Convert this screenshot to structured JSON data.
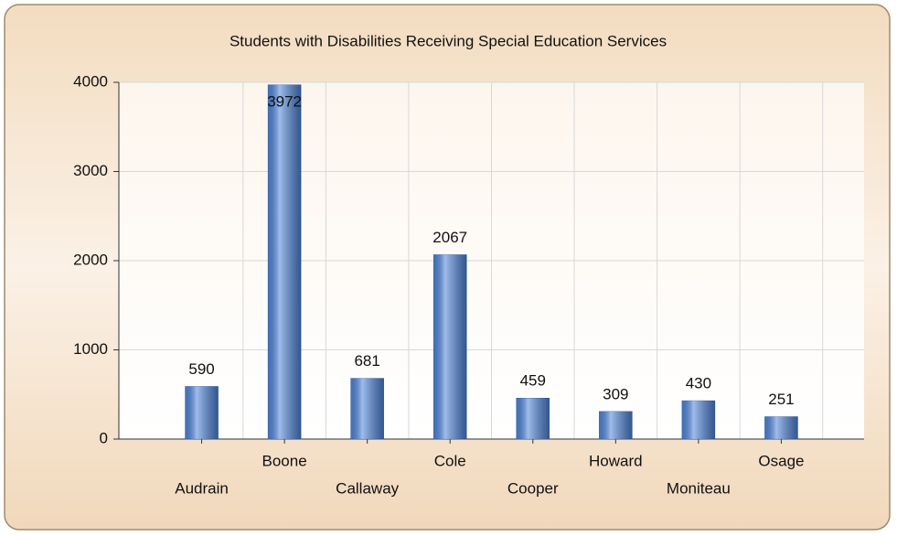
{
  "chart_data": {
    "type": "bar",
    "title": "Students with Disabilities Receiving Special Education Services",
    "categories": [
      "Audrain",
      "Boone",
      "Callaway",
      "Cole",
      "Cooper",
      "Howard",
      "Moniteau",
      "Osage"
    ],
    "values": [
      590,
      3972,
      681,
      2067,
      459,
      309,
      430,
      251
    ],
    "color": "#4f86dc",
    "ylim": [
      0,
      4000
    ],
    "yticks": [
      0,
      1000,
      2000,
      3000,
      4000
    ],
    "grid": true
  }
}
